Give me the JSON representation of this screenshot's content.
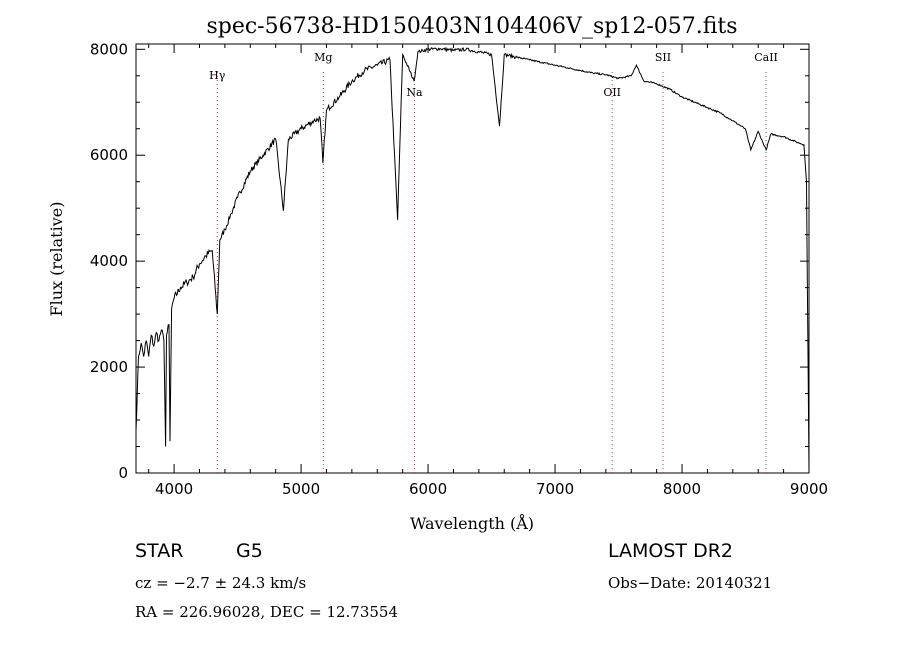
{
  "chart_data": {
    "type": "line",
    "title": "spec-56738-HD150403N104406V_sp12-057.fits",
    "xlabel": "Wavelength (Å)",
    "ylabel": "Flux (relative)",
    "xlim": [
      3700,
      9000
    ],
    "ylim": [
      0,
      8100
    ],
    "xticks": [
      4000,
      5000,
      6000,
      7000,
      8000,
      9000
    ],
    "yticks": [
      0,
      2000,
      4000,
      6000,
      8000
    ],
    "grid": false,
    "series": [
      {
        "x": [
          3700,
          3720,
          3740,
          3760,
          3780,
          3800,
          3820,
          3840,
          3860,
          3880,
          3900,
          3920,
          3933,
          3940,
          3960,
          3968,
          3980,
          4000,
          4050,
          4100,
          4150,
          4200,
          4250,
          4300,
          4340,
          4360,
          4400,
          4450,
          4500,
          4600,
          4700,
          4800,
          4861,
          4900,
          5000,
          5100,
          5150,
          5172,
          5200,
          5300,
          5400,
          5500,
          5600,
          5700,
          5760,
          5800,
          5890,
          5920,
          6000,
          6100,
          6200,
          6300,
          6400,
          6500,
          6563,
          6600,
          6700,
          6800,
          6900,
          7000,
          7100,
          7200,
          7300,
          7400,
          7500,
          7600,
          7640,
          7700,
          7800,
          7900,
          8000,
          8100,
          8200,
          8300,
          8400,
          8498,
          8542,
          8600,
          8662,
          8700,
          8800,
          8900,
          8960,
          8980,
          9000
        ],
        "y": [
          800,
          2200,
          2450,
          2200,
          2500,
          2200,
          2600,
          2400,
          2650,
          2500,
          2700,
          2500,
          500,
          2600,
          2800,
          600,
          3100,
          3300,
          3500,
          3600,
          3700,
          3950,
          4100,
          4200,
          3000,
          4400,
          4600,
          4900,
          5200,
          5700,
          6000,
          6300,
          4950,
          6300,
          6500,
          6650,
          6700,
          5850,
          6850,
          7100,
          7400,
          7600,
          7700,
          7800,
          4780,
          7900,
          7400,
          7950,
          8000,
          8010,
          7980,
          8000,
          7950,
          7900,
          6550,
          7900,
          7850,
          7800,
          7750,
          7700,
          7650,
          7600,
          7550,
          7520,
          7450,
          7500,
          7700,
          7400,
          7350,
          7250,
          7100,
          7000,
          6900,
          6800,
          6650,
          6500,
          6100,
          6450,
          6100,
          6400,
          6350,
          6250,
          6200,
          5500,
          0
        ]
      }
    ],
    "annotations": [
      {
        "label": "Hγ",
        "x": 4340
      },
      {
        "label": "Mg",
        "x": 5175
      },
      {
        "label": "Na",
        "x": 5893
      },
      {
        "label": "OII",
        "x": 7450
      },
      {
        "label": "SII",
        "x": 7850
      },
      {
        "label": "CaII",
        "x": 8662
      }
    ]
  },
  "info": {
    "object_type": "STAR",
    "subclass": "G5",
    "survey": "LAMOST DR2",
    "velocity": "cz = −2.7 ± 24.3 km/s",
    "obs_date": "Obs−Date: 20140321",
    "coords": "RA = 226.96028, DEC =  12.73554"
  },
  "colors": {
    "spectrum": "#000000",
    "marker_lines": "#d04040"
  }
}
